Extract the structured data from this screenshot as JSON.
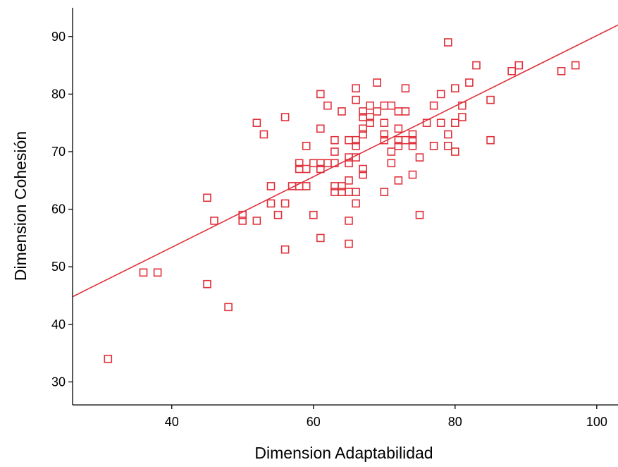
{
  "chart_data": {
    "type": "scatter",
    "xlabel": "Dimension Adaptabilidad",
    "ylabel": "Dimension Cohesión",
    "xlim": [
      26,
      103
    ],
    "ylim": [
      26,
      95
    ],
    "x_ticks": [
      40,
      60,
      80,
      100
    ],
    "y_ticks": [
      30,
      40,
      50,
      60,
      70,
      80,
      90
    ],
    "grid": false,
    "legend": "none",
    "marker": "hollow-square",
    "color": "#e0303a",
    "series": [
      {
        "points": [
          [
            31,
            34
          ],
          [
            36,
            49
          ],
          [
            38,
            49
          ],
          [
            45,
            62
          ],
          [
            45,
            47
          ],
          [
            46,
            58
          ],
          [
            48,
            43
          ],
          [
            50,
            59
          ],
          [
            50,
            58
          ],
          [
            52,
            75
          ],
          [
            52,
            58
          ],
          [
            53,
            73
          ],
          [
            54,
            64
          ],
          [
            54,
            61
          ],
          [
            55,
            59
          ],
          [
            56,
            76
          ],
          [
            56,
            61
          ],
          [
            56,
            53
          ],
          [
            57,
            64
          ],
          [
            58,
            68
          ],
          [
            58,
            67
          ],
          [
            58,
            64
          ],
          [
            59,
            71
          ],
          [
            59,
            67
          ],
          [
            59,
            64
          ],
          [
            60,
            68
          ],
          [
            60,
            59
          ],
          [
            61,
            80
          ],
          [
            61,
            74
          ],
          [
            61,
            68
          ],
          [
            61,
            67
          ],
          [
            61,
            55
          ],
          [
            62,
            78
          ],
          [
            62,
            68
          ],
          [
            63,
            72
          ],
          [
            63,
            70
          ],
          [
            63,
            68
          ],
          [
            63,
            64
          ],
          [
            63,
            63
          ],
          [
            64,
            77
          ],
          [
            64,
            64
          ],
          [
            64,
            63
          ],
          [
            65,
            72
          ],
          [
            65,
            69
          ],
          [
            65,
            68
          ],
          [
            65,
            65
          ],
          [
            65,
            63
          ],
          [
            65,
            58
          ],
          [
            65,
            54
          ],
          [
            66,
            81
          ],
          [
            66,
            79
          ],
          [
            66,
            72
          ],
          [
            66,
            71
          ],
          [
            66,
            69
          ],
          [
            66,
            63
          ],
          [
            66,
            61
          ],
          [
            67,
            77
          ],
          [
            67,
            76
          ],
          [
            67,
            74
          ],
          [
            67,
            73
          ],
          [
            67,
            67
          ],
          [
            67,
            66
          ],
          [
            68,
            78
          ],
          [
            68,
            76
          ],
          [
            68,
            75
          ],
          [
            69,
            82
          ],
          [
            69,
            77
          ],
          [
            70,
            78
          ],
          [
            70,
            75
          ],
          [
            70,
            73
          ],
          [
            70,
            72
          ],
          [
            70,
            63
          ],
          [
            71,
            78
          ],
          [
            71,
            70
          ],
          [
            71,
            68
          ],
          [
            72,
            77
          ],
          [
            72,
            74
          ],
          [
            72,
            72
          ],
          [
            72,
            71
          ],
          [
            72,
            65
          ],
          [
            73,
            81
          ],
          [
            73,
            77
          ],
          [
            73,
            72
          ],
          [
            74,
            73
          ],
          [
            74,
            72
          ],
          [
            74,
            71
          ],
          [
            74,
            66
          ],
          [
            75,
            69
          ],
          [
            75,
            59
          ],
          [
            76,
            75
          ],
          [
            77,
            78
          ],
          [
            77,
            71
          ],
          [
            78,
            80
          ],
          [
            78,
            75
          ],
          [
            79,
            89
          ],
          [
            79,
            73
          ],
          [
            79,
            71
          ],
          [
            80,
            81
          ],
          [
            80,
            75
          ],
          [
            80,
            70
          ],
          [
            81,
            78
          ],
          [
            81,
            76
          ],
          [
            82,
            82
          ],
          [
            83,
            85
          ],
          [
            85,
            79
          ],
          [
            85,
            72
          ],
          [
            88,
            84
          ],
          [
            89,
            85
          ],
          [
            95,
            84
          ],
          [
            97,
            85
          ]
        ]
      }
    ],
    "fit_line": {
      "x": [
        26,
        103
      ],
      "y": [
        44.8,
        92.0
      ]
    }
  }
}
